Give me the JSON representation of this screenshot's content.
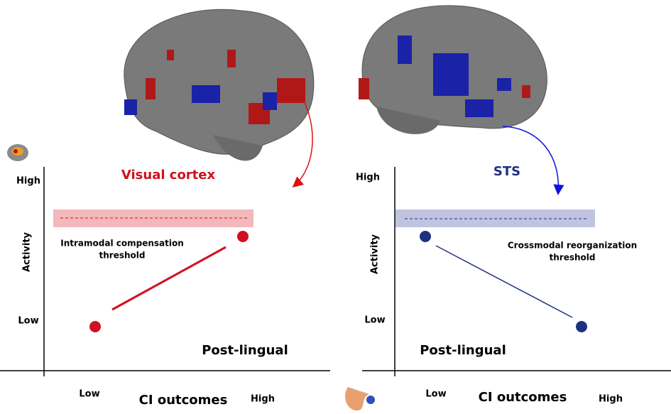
{
  "left": {
    "region": "Visual cortex",
    "y_high": "High",
    "y_low": "Low",
    "y_axis": "Activity",
    "threshold": [
      "Intramodal compensation",
      "threshold"
    ],
    "group": "Post-lingual",
    "x_low": "Low",
    "x_axis": "CI outcomes",
    "x_high": "High"
  },
  "right": {
    "region": "STS",
    "y_high": "High",
    "y_low": "Low",
    "y_axis": "Activity",
    "threshold": [
      "Crossmodal reorganization",
      "threshold"
    ],
    "group": "Post-lingual",
    "x_low": "Low",
    "x_axis": "CI outcomes",
    "x_high": "High"
  }
}
